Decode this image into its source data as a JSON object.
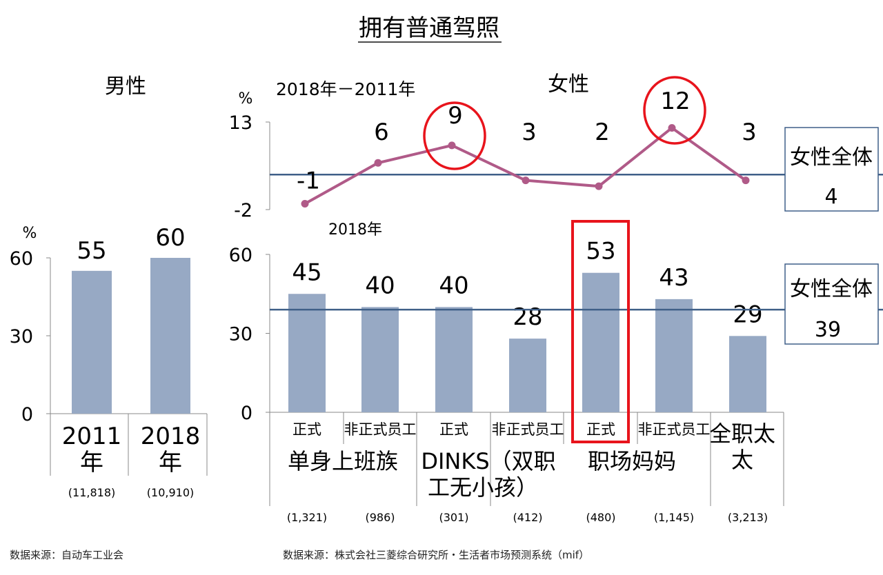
{
  "title": "拥有普通驾照",
  "chart_data": [
    {
      "type": "bar",
      "panel": "male",
      "title": "男性",
      "unit": "%",
      "categories": [
        "2011年",
        "2018年"
      ],
      "samples": [
        "(11,818)",
        "(10,910)"
      ],
      "values": [
        55,
        60
      ],
      "ylim": [
        0,
        60
      ],
      "yticks": [
        0,
        30,
        60
      ],
      "source": "数据来源：自动车工业会"
    },
    {
      "type": "line",
      "panel": "female-change",
      "title": "女性",
      "series_label": "2018年－2011年",
      "unit": "%",
      "values": [
        -1,
        6,
        9,
        3,
        2,
        12,
        3
      ],
      "highlighted_indices": [
        2,
        5
      ],
      "ylim": [
        -2,
        13
      ],
      "yticks": [
        -2,
        13
      ],
      "reference": {
        "label": "女性全体",
        "value": 4
      },
      "color": "#b05a88"
    },
    {
      "type": "bar",
      "panel": "female-2018",
      "series_label": "2018年",
      "unit": "%",
      "categories": [
        "正式",
        "非正式员工",
        "正式",
        "非正式员工",
        "正式",
        "非正式员工",
        "全职太太"
      ],
      "groups": [
        {
          "label": "单身上班族",
          "span": 2
        },
        {
          "label": "DINKS（双职工无小孩）",
          "span": 2
        },
        {
          "label": "职场妈妈",
          "span": 2
        },
        {
          "label": "",
          "span": 1
        }
      ],
      "samples": [
        "(1,321)",
        "(986)",
        "(301)",
        "(412)",
        "(480)",
        "(1,145)",
        "(3,213)"
      ],
      "values": [
        45,
        40,
        40,
        28,
        53,
        43,
        29
      ],
      "highlighted_index": 4,
      "ylim": [
        0,
        60
      ],
      "yticks": [
        0,
        30,
        60
      ],
      "reference": {
        "label": "女性全体",
        "value": 39
      },
      "source": "数据来源：株式会社三菱综合研究所・生活者市场预测系统（mif）"
    }
  ],
  "colors": {
    "bar": "#97a9c4",
    "line": "#b05a88",
    "reference": "#3f5f88",
    "highlight": "#e8141c",
    "axis": "#888888"
  }
}
